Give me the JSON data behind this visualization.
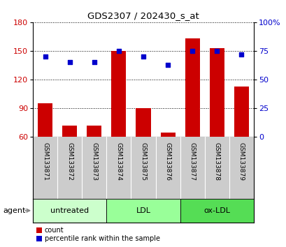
{
  "title": "GDS2307 / 202430_s_at",
  "samples": [
    "GSM133871",
    "GSM133872",
    "GSM133873",
    "GSM133874",
    "GSM133875",
    "GSM133876",
    "GSM133877",
    "GSM133878",
    "GSM133879"
  ],
  "counts": [
    95,
    72,
    72,
    150,
    90,
    65,
    163,
    153,
    113
  ],
  "percentiles": [
    70,
    65,
    65,
    75,
    70,
    63,
    75,
    75,
    72
  ],
  "groups": [
    {
      "label": "untreated",
      "indices": [
        0,
        1,
        2
      ],
      "color": "#ccffcc"
    },
    {
      "label": "LDL",
      "indices": [
        3,
        4,
        5
      ],
      "color": "#99ff99"
    },
    {
      "label": "ox-LDL",
      "indices": [
        6,
        7,
        8
      ],
      "color": "#55dd55"
    }
  ],
  "ylim_left": [
    60,
    180
  ],
  "ylim_right": [
    0,
    100
  ],
  "yticks_left": [
    60,
    90,
    120,
    150,
    180
  ],
  "yticks_right": [
    0,
    25,
    50,
    75,
    100
  ],
  "bar_color": "#cc0000",
  "dot_color": "#0000cc",
  "bar_width": 0.6,
  "background_color": "#ffffff",
  "sample_label_bg": "#cccccc",
  "legend_items": [
    "count",
    "percentile rank within the sample"
  ]
}
